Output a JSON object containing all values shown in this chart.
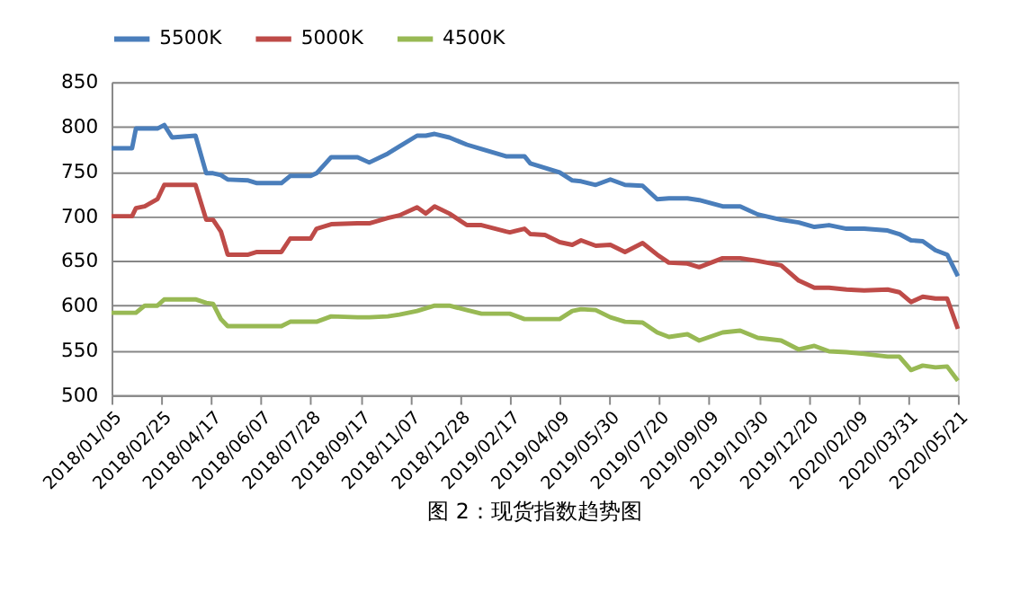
{
  "chart_data": {
    "type": "line",
    "x": [
      "2018-01-05",
      "2018-01-26",
      "2018-01-30",
      "2018-02-08",
      "2018-02-21",
      "2018-02-28",
      "2018-03-08",
      "2018-04-01",
      "2018-04-12",
      "2018-04-19",
      "2018-04-27",
      "2018-05-04",
      "2018-05-25",
      "2018-06-03",
      "2018-06-28",
      "2018-07-07",
      "2018-07-28",
      "2018-08-03",
      "2018-08-18",
      "2018-09-14",
      "2018-09-26",
      "2018-10-15",
      "2018-10-27",
      "2018-11-14",
      "2018-11-23",
      "2018-12-02",
      "2018-12-17",
      "2019-01-04",
      "2019-01-19",
      "2019-02-13",
      "2019-02-17",
      "2019-03-04",
      "2019-03-10",
      "2019-03-25",
      "2019-04-09",
      "2019-04-22",
      "2019-05-01",
      "2019-05-16",
      "2019-05-31",
      "2019-06-15",
      "2019-07-03",
      "2019-07-18",
      "2019-07-30",
      "2019-08-18",
      "2019-08-30",
      "2019-09-23",
      "2019-10-11",
      "2019-10-29",
      "2019-11-22",
      "2019-12-10",
      "2019-12-26",
      "2020-01-10",
      "2020-01-28",
      "2020-02-15",
      "2020-03-10",
      "2020-03-22",
      "2020-04-03",
      "2020-04-15",
      "2020-04-28",
      "2020-05-10",
      "2020-05-21"
    ],
    "series": [
      {
        "name": "5500K",
        "color": "#4a7ebb",
        "values": [
          776,
          776,
          798,
          798,
          798,
          802,
          788,
          790,
          748,
          748,
          746,
          741,
          740,
          737,
          737,
          745,
          745,
          748,
          766,
          766,
          760,
          770,
          778,
          790,
          790,
          792,
          788,
          780,
          775,
          767,
          767,
          767,
          759,
          754,
          749,
          740,
          739,
          735,
          741,
          735,
          734,
          719,
          720,
          720,
          718,
          711,
          711,
          702,
          696,
          693,
          688,
          690,
          686,
          686,
          684,
          680,
          673,
          672,
          662,
          657,
          633
        ]
      },
      {
        "name": "5000K",
        "color": "#be4b48",
        "values": [
          700,
          700,
          709,
          711,
          719,
          735,
          735,
          735,
          696,
          696,
          683,
          657,
          657,
          660,
          660,
          675,
          675,
          686,
          691,
          692,
          692,
          698,
          701,
          710,
          703,
          711,
          703,
          690,
          690,
          683,
          682,
          686,
          680,
          679,
          671,
          668,
          673,
          667,
          668,
          660,
          670,
          657,
          648,
          647,
          643,
          653,
          653,
          650,
          645,
          628,
          620,
          620,
          618,
          617,
          618,
          615,
          604,
          610,
          608,
          608,
          574
        ]
      },
      {
        "name": "4500K",
        "color": "#98b954",
        "values": [
          592,
          592,
          592,
          600,
          600,
          607,
          607,
          607,
          603,
          602,
          585,
          577,
          577,
          577,
          577,
          582,
          582,
          582,
          588,
          587,
          587,
          588,
          590,
          594,
          597,
          600,
          600,
          595,
          591,
          591,
          591,
          585,
          585,
          585,
          585,
          594,
          596,
          595,
          587,
          582,
          581,
          570,
          565,
          568,
          561,
          570,
          572,
          564,
          561,
          551,
          555,
          549,
          548,
          546,
          543,
          543,
          528,
          533,
          531,
          532,
          516
        ]
      }
    ],
    "xlim": [
      "2018-01-05",
      "2020-05-21"
    ],
    "xticks": [
      {
        "value": "2018-01-05",
        "label": "2018/01/05"
      },
      {
        "value": "2018-02-25",
        "label": "2018/02/25"
      },
      {
        "value": "2018-04-17",
        "label": "2018/04/17"
      },
      {
        "value": "2018-06-07",
        "label": "2018/06/07"
      },
      {
        "value": "2018-07-28",
        "label": "2018/07/28"
      },
      {
        "value": "2018-09-17",
        "label": "2018/09/17"
      },
      {
        "value": "2018-11-07",
        "label": "2018/11/07"
      },
      {
        "value": "2018-12-28",
        "label": "2018/12/28"
      },
      {
        "value": "2019-02-17",
        "label": "2019/02/17"
      },
      {
        "value": "2019-04-09",
        "label": "2019/04/09"
      },
      {
        "value": "2019-05-30",
        "label": "2019/05/30"
      },
      {
        "value": "2019-07-20",
        "label": "2019/07/20"
      },
      {
        "value": "2019-09-09",
        "label": "2019/09/09"
      },
      {
        "value": "2019-10-30",
        "label": "2019/10/30"
      },
      {
        "value": "2019-12-20",
        "label": "2019/12/20"
      },
      {
        "value": "2020-02-09",
        "label": "2020/02/09"
      },
      {
        "value": "2020-03-31",
        "label": "2020/03/31"
      },
      {
        "value": "2020-05-21",
        "label": "2020/05/21"
      }
    ],
    "ylim": [
      500,
      850
    ],
    "yticks": [
      500,
      550,
      600,
      650,
      700,
      750,
      800,
      850
    ],
    "grid": "y",
    "legend": "top",
    "marker": "none",
    "line_style": "solid",
    "annotations": [
      "图 2：现货指数趋势图"
    ]
  }
}
